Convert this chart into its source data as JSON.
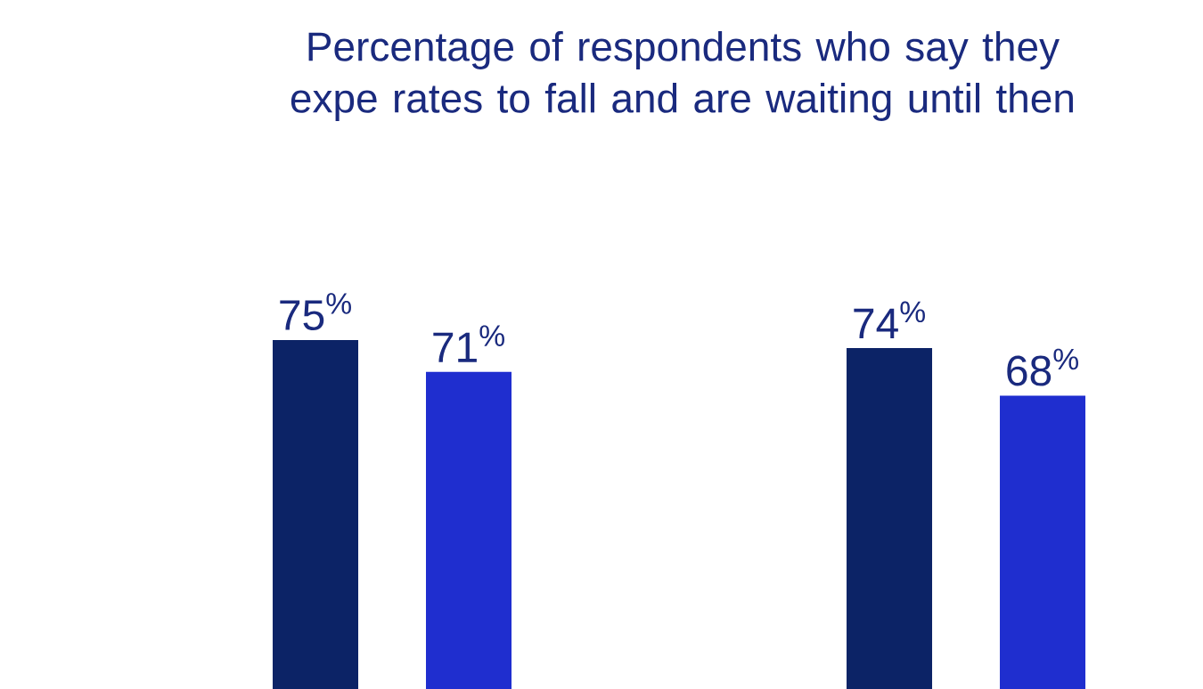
{
  "chart_data": {
    "type": "bar",
    "title": "Percentage of respondents who say they expe rates to fall and are waiting until then",
    "categories": [
      null,
      null
    ],
    "series": [
      {
        "color": "#0c2366",
        "values": [
          75,
          74
        ],
        "value_labels": [
          "75$^{%}$",
          "74$^{%}$"
        ]
      },
      {
        "color": "#1f2ecf",
        "values": [
          71,
          68
        ],
        "value_labels": [
          "71$^{%}$",
          "68$^{%}$"
        ]
      }
    ]
  }
}
